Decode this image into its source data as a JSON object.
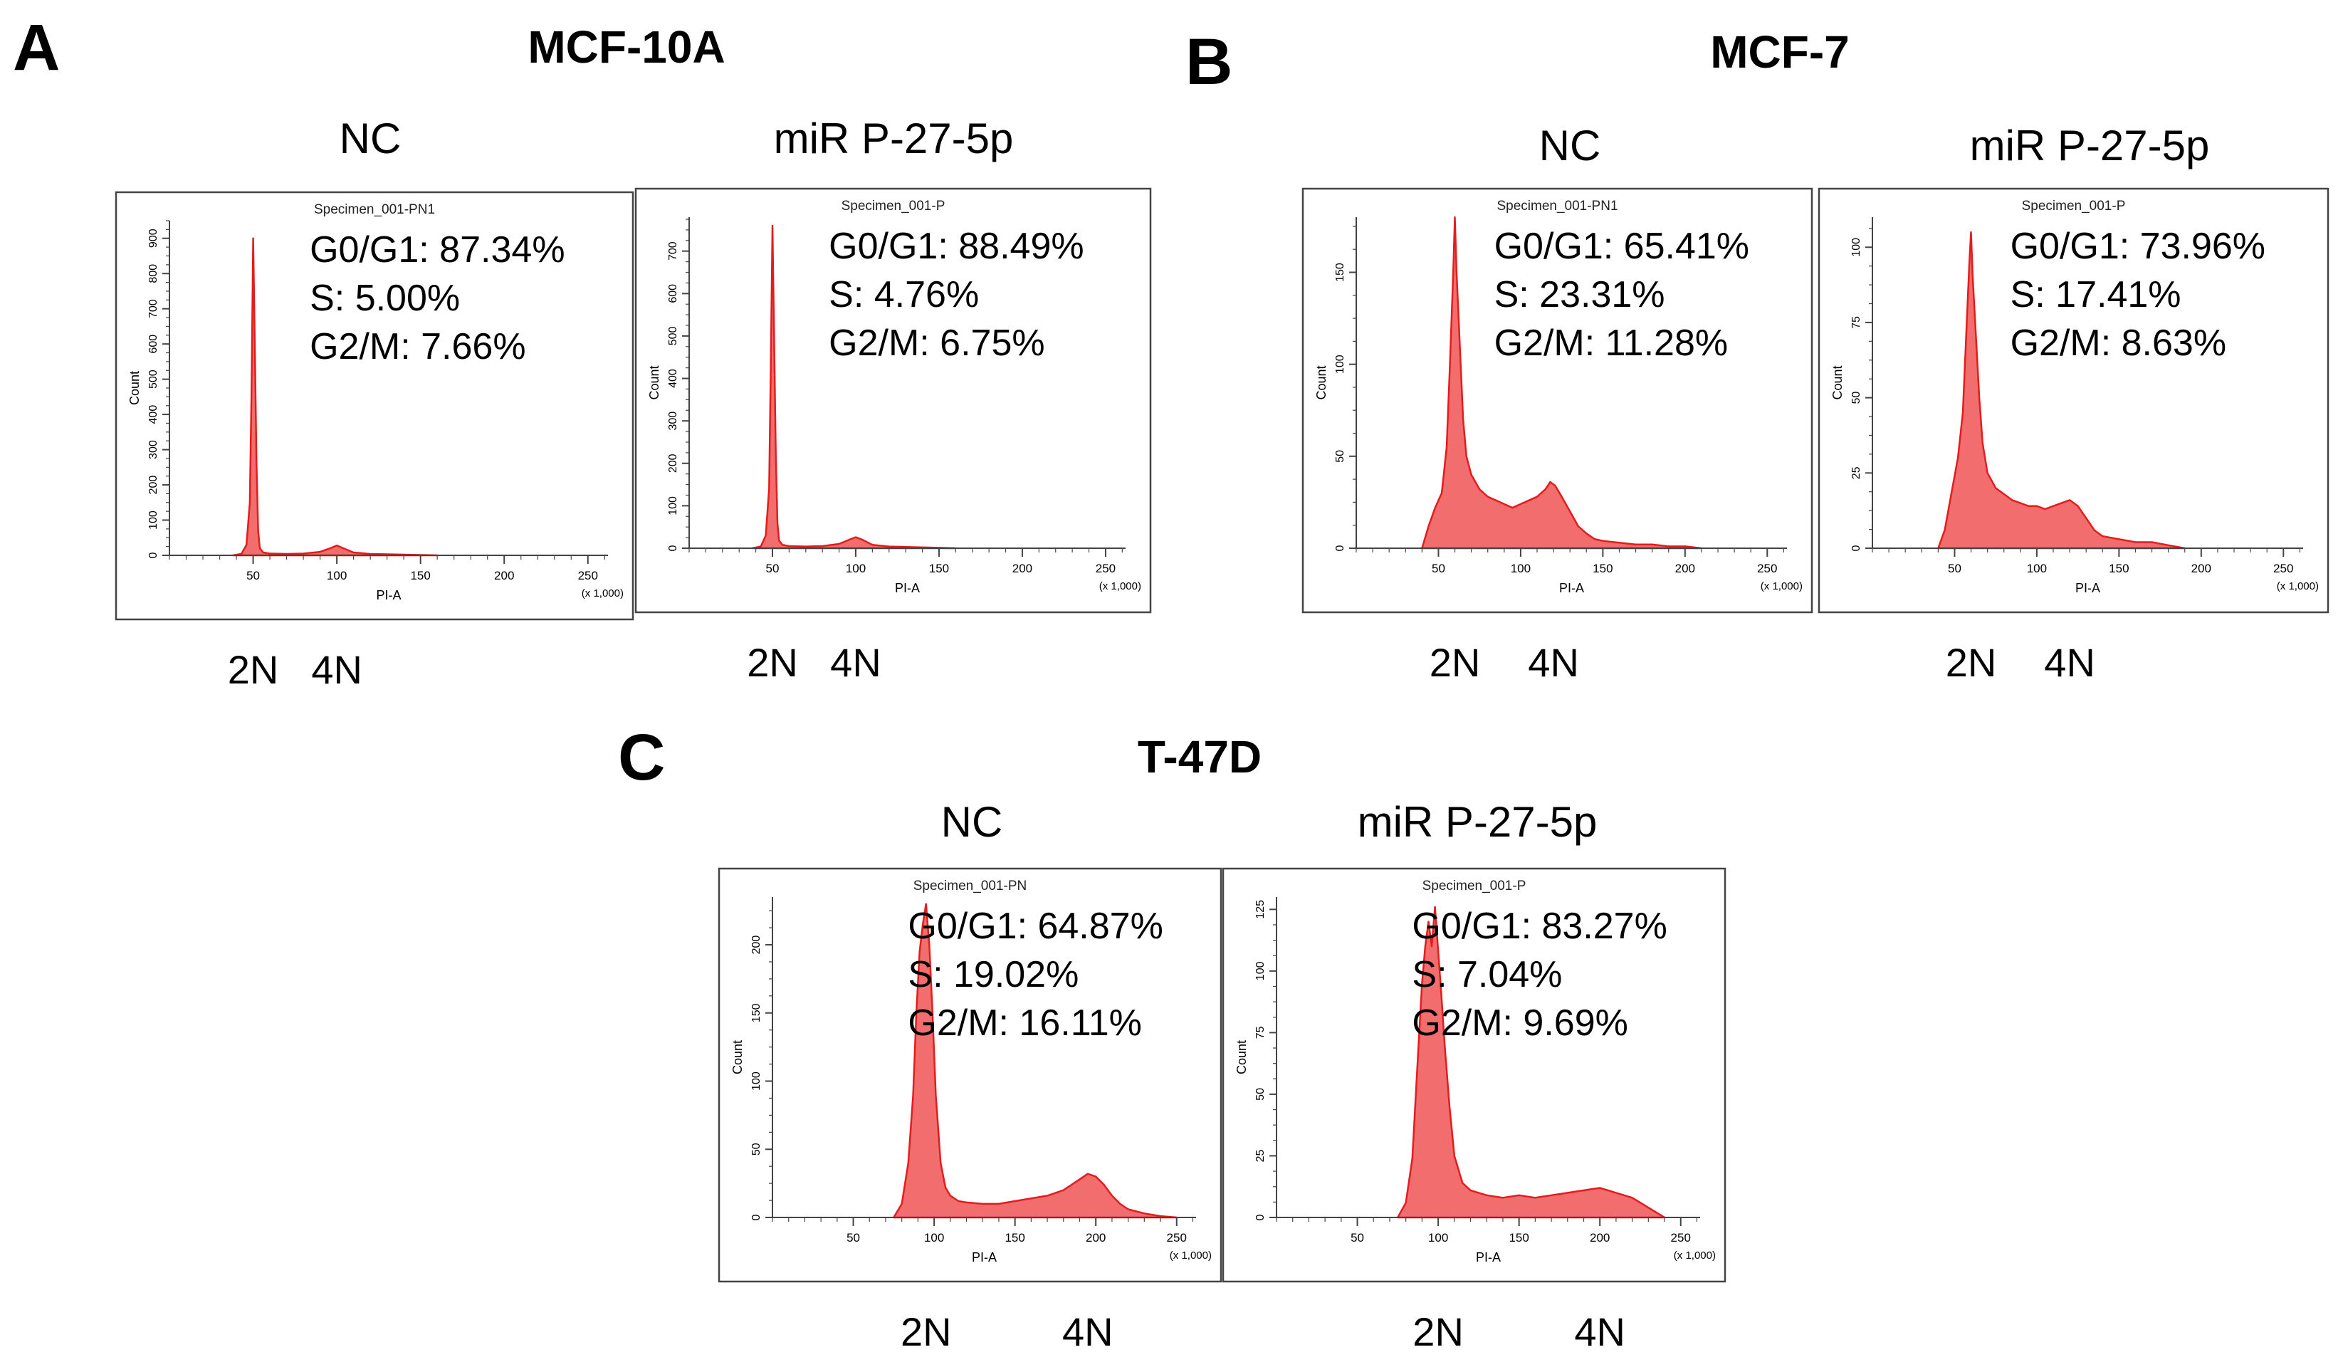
{
  "figure": {
    "panels": [
      {
        "letter": "A",
        "title": "MCF-10A"
      },
      {
        "letter": "B",
        "title": "MCF-7"
      },
      {
        "letter": "C",
        "title": "T-47D"
      }
    ]
  },
  "chart_data": [
    {
      "type": "area",
      "id": "a1",
      "panel": "A",
      "label": "NC",
      "specimen": "Specimen_001-PN1",
      "xlabel": "PI-A",
      "ylabel": "Count",
      "x_scale_note": "(x 1,000)",
      "xlim": [
        0,
        262
      ],
      "ylim": [
        0,
        950
      ],
      "xticks": [
        50,
        100,
        150,
        200,
        250
      ],
      "yticks": [
        0,
        100,
        200,
        300,
        400,
        500,
        600,
        700,
        800,
        900
      ],
      "stats": [
        "G0/G1: 87.34%",
        "S: 5.00%",
        "G2/M: 7.66%"
      ],
      "markers": [
        "2N",
        "4N"
      ],
      "marker_x": [
        50,
        100
      ],
      "x": [
        38,
        43,
        46,
        48,
        49,
        50,
        51,
        52,
        53,
        54,
        56,
        60,
        70,
        80,
        90,
        96,
        100,
        104,
        110,
        120,
        130,
        150,
        160
      ],
      "y": [
        0,
        4,
        30,
        150,
        450,
        900,
        600,
        260,
        70,
        20,
        8,
        5,
        4,
        5,
        10,
        20,
        28,
        20,
        8,
        4,
        3,
        1,
        0
      ]
    },
    {
      "type": "area",
      "id": "a2",
      "panel": "A",
      "label": "miR P-27-5p",
      "specimen": "Specimen_001-P",
      "xlabel": "PI-A",
      "ylabel": "Count",
      "x_scale_note": "(x 1,000)",
      "xlim": [
        0,
        262
      ],
      "ylim": [
        0,
        780
      ],
      "xticks": [
        50,
        100,
        150,
        200,
        250
      ],
      "yticks": [
        0,
        100,
        200,
        300,
        400,
        500,
        600,
        700
      ],
      "stats": [
        "G0/G1: 88.49%",
        "S: 4.76%",
        "G2/M: 6.75%"
      ],
      "markers": [
        "2N",
        "4N"
      ],
      "marker_x": [
        50,
        100
      ],
      "x": [
        38,
        43,
        46,
        48,
        49,
        50,
        51,
        52,
        53,
        54,
        56,
        60,
        70,
        80,
        90,
        96,
        100,
        104,
        110,
        120,
        130,
        150,
        160
      ],
      "y": [
        0,
        4,
        30,
        140,
        420,
        760,
        500,
        220,
        60,
        18,
        8,
        5,
        4,
        5,
        10,
        20,
        26,
        20,
        8,
        4,
        3,
        1,
        0
      ]
    },
    {
      "type": "area",
      "id": "b1",
      "panel": "B",
      "label": "NC",
      "specimen": "Specimen_001-PN1",
      "xlabel": "PI-A",
      "ylabel": "Count",
      "x_scale_note": "(x 1,000)",
      "xlim": [
        0,
        262
      ],
      "ylim": [
        0,
        180
      ],
      "xticks": [
        50,
        100,
        150,
        200,
        250
      ],
      "yticks": [
        0,
        50,
        100,
        150
      ],
      "stats": [
        "G0/G1: 65.41%",
        "S: 23.31%",
        "G2/M: 11.28%"
      ],
      "markers": [
        "2N",
        "4N"
      ],
      "marker_x": [
        60,
        120
      ],
      "x": [
        40,
        44,
        48,
        52,
        55,
        57,
        59,
        60,
        61,
        63,
        65,
        67,
        70,
        75,
        80,
        85,
        90,
        95,
        100,
        105,
        110,
        115,
        118,
        121,
        125,
        130,
        135,
        140,
        145,
        150,
        160,
        170,
        180,
        190,
        200,
        210
      ],
      "y": [
        0,
        12,
        22,
        30,
        55,
        100,
        150,
        180,
        150,
        110,
        70,
        50,
        40,
        32,
        28,
        26,
        24,
        22,
        24,
        26,
        28,
        32,
        36,
        34,
        28,
        20,
        12,
        8,
        5,
        4,
        3,
        2,
        2,
        1,
        1,
        0
      ]
    },
    {
      "type": "area",
      "id": "b2",
      "panel": "B",
      "label": "miR P-27-5p",
      "specimen": "Specimen_001-P",
      "xlabel": "PI-A",
      "ylabel": "Count",
      "x_scale_note": "(x 1,000)",
      "xlim": [
        0,
        262
      ],
      "ylim": [
        0,
        110
      ],
      "xticks": [
        50,
        100,
        150,
        200,
        250
      ],
      "yticks": [
        0,
        25,
        50,
        75,
        100
      ],
      "stats": [
        "G0/G1: 73.96%",
        "S: 17.41%",
        "G2/M: 8.63%"
      ],
      "markers": [
        "2N",
        "4N"
      ],
      "marker_x": [
        60,
        120
      ],
      "x": [
        40,
        44,
        48,
        52,
        55,
        57,
        59,
        60,
        61,
        63,
        65,
        67,
        70,
        75,
        80,
        85,
        90,
        95,
        100,
        105,
        110,
        115,
        120,
        125,
        130,
        135,
        140,
        150,
        160,
        170,
        180,
        190
      ],
      "y": [
        0,
        6,
        18,
        30,
        45,
        70,
        95,
        105,
        90,
        70,
        50,
        35,
        25,
        20,
        18,
        16,
        15,
        14,
        14,
        13,
        14,
        15,
        16,
        14,
        10,
        6,
        4,
        3,
        2,
        2,
        1,
        0
      ]
    },
    {
      "type": "area",
      "id": "c1",
      "panel": "C",
      "label": "NC",
      "specimen": "Specimen_001-PN",
      "xlabel": "PI-A",
      "ylabel": "Count",
      "x_scale_note": "(x 1,000)",
      "xlim": [
        0,
        262
      ],
      "ylim": [
        0,
        235
      ],
      "xticks": [
        50,
        100,
        150,
        200,
        250
      ],
      "yticks": [
        0,
        50,
        100,
        150,
        200
      ],
      "stats": [
        "G0/G1: 64.87%",
        "S: 19.02%",
        "G2/M: 16.11%"
      ],
      "markers": [
        "2N",
        "4N"
      ],
      "marker_x": [
        95,
        195
      ],
      "x": [
        75,
        80,
        84,
        87,
        89,
        91,
        93,
        95,
        97,
        99,
        101,
        104,
        107,
        110,
        115,
        120,
        130,
        140,
        150,
        160,
        170,
        180,
        185,
        190,
        195,
        200,
        205,
        210,
        215,
        220,
        230,
        240,
        250
      ],
      "y": [
        0,
        10,
        40,
        90,
        150,
        195,
        215,
        230,
        200,
        150,
        90,
        40,
        22,
        16,
        12,
        11,
        10,
        10,
        12,
        14,
        16,
        20,
        24,
        28,
        32,
        30,
        24,
        16,
        10,
        6,
        3,
        1,
        0
      ]
    },
    {
      "type": "area",
      "id": "c2",
      "panel": "C",
      "label": "miR P-27-5p",
      "specimen": "Specimen_001-P",
      "xlabel": "PI-A",
      "ylabel": "Count",
      "x_scale_note": "(x 1,000)",
      "xlim": [
        0,
        262
      ],
      "ylim": [
        0,
        130
      ],
      "xticks": [
        50,
        100,
        150,
        200,
        250
      ],
      "yticks": [
        0,
        25,
        50,
        75,
        100,
        125
      ],
      "stats": [
        "G0/G1: 83.27%",
        "S: 7.04%",
        "G2/M: 9.69%"
      ],
      "markers": [
        "2N",
        "4N"
      ],
      "marker_x": [
        100,
        200
      ],
      "x": [
        75,
        80,
        84,
        87,
        90,
        92,
        94,
        96,
        98,
        100,
        102,
        104,
        107,
        110,
        115,
        120,
        130,
        140,
        150,
        160,
        170,
        180,
        190,
        200,
        205,
        210,
        215,
        220,
        225,
        230,
        235,
        240
      ],
      "y": [
        0,
        6,
        24,
        60,
        95,
        110,
        120,
        110,
        126,
        108,
        90,
        70,
        45,
        25,
        14,
        11,
        9,
        8,
        9,
        8,
        9,
        10,
        11,
        12,
        11,
        10,
        9,
        8,
        6,
        4,
        2,
        0
      ]
    }
  ]
}
